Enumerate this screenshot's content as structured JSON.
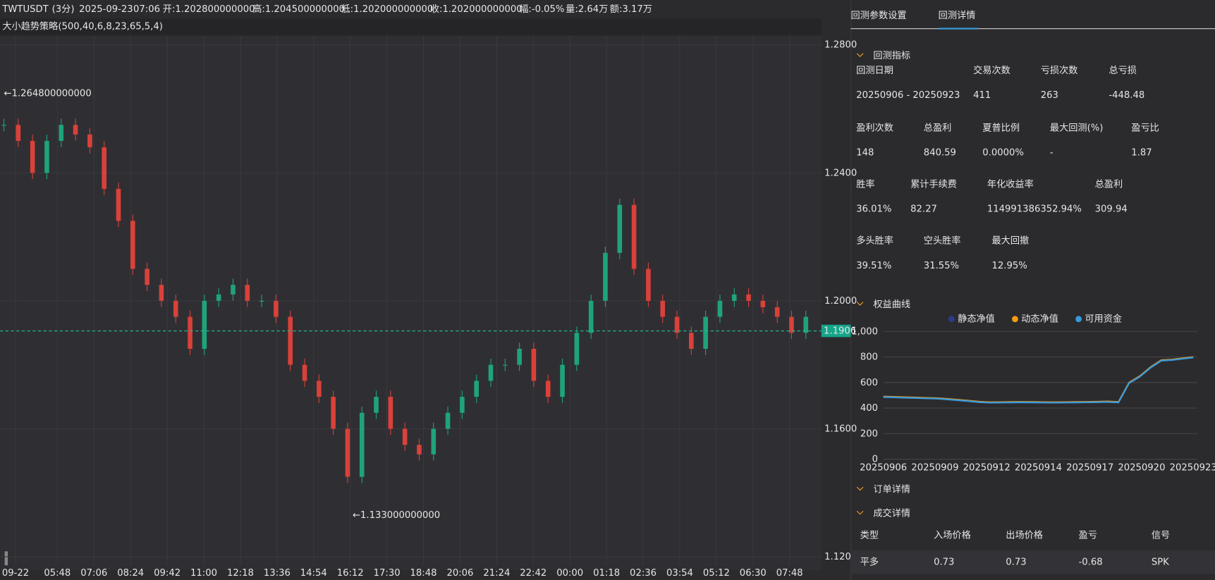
{
  "header": {
    "symbol": "TWTUSDT",
    "period": "(3分)",
    "date": "2025-09-23",
    "time": "07:06",
    "open": "开:1.202800000000",
    "high": "高:1.204500000000",
    "low": "低:1.202000000000",
    "close": "收:1.202000000000",
    "change": "幅:-0.05%",
    "volume": "量:2.64万",
    "amount": "额:3.17万"
  },
  "strategy": "大小趋势策略(500,40,6,8,23,65,5,4)",
  "chart_data": [
    {
      "type": "candlestick",
      "closes": [
        1.255,
        1.25,
        1.24,
        1.25,
        1.255,
        1.252,
        1.248,
        1.235,
        1.225,
        1.21,
        1.205,
        1.2,
        1.195,
        1.185,
        1.2,
        1.202,
        1.205,
        1.2,
        1.2,
        1.195,
        1.18,
        1.175,
        1.17,
        1.16,
        1.145,
        1.165,
        1.17,
        1.16,
        1.155,
        1.152,
        1.16,
        1.165,
        1.17,
        1.175,
        1.18,
        1.18,
        1.185,
        1.175,
        1.17,
        1.18,
        1.19,
        1.2,
        1.215,
        1.23,
        1.21,
        1.2,
        1.195,
        1.19,
        1.185,
        1.195,
        1.2,
        1.202,
        1.2,
        1.198,
        1.195,
        1.19,
        1.195
      ],
      "ylim": [
        1.12,
        1.28
      ],
      "yticks": [
        {
          "value": 1.28,
          "label": "1.2800"
        },
        {
          "value": 1.24,
          "label": "1.2400"
        },
        {
          "value": 1.2,
          "label": "1.2000"
        },
        {
          "value": 1.16,
          "label": "1.1600"
        },
        {
          "value": 1.12,
          "label": "1.1200"
        }
      ],
      "last_price": {
        "value": 1.1906,
        "label": "1.1906"
      },
      "annotations": [
        {
          "value": 1.2648,
          "label": "←1.264800000000"
        },
        {
          "value": 1.133,
          "label": "←1.133000000000"
        }
      ],
      "x_labels": [
        "09-22",
        "05:48",
        "07:06",
        "08:24",
        "09:42",
        "11:00",
        "12:18",
        "13:36",
        "14:54",
        "16:12",
        "17:30",
        "18:48",
        "20:06",
        "21:24",
        "22:42",
        "00:00",
        "01:18",
        "02:36",
        "03:54",
        "05:12",
        "06:30",
        "07:48"
      ]
    },
    {
      "type": "line",
      "title": "权益曲线",
      "x_labels": [
        "20250906",
        "20250909",
        "20250912",
        "20250914",
        "20250917",
        "20250920",
        "20250923"
      ],
      "ylim": [
        0,
        1000
      ],
      "yticks": [
        0,
        200,
        400,
        600,
        800,
        {
          "value": 1000,
          "label": "1,000"
        }
      ],
      "series": [
        {
          "name": "静态净值",
          "color": "#2d3a8c",
          "values": [
            486,
            484,
            481,
            479,
            476,
            474,
            468,
            461,
            454,
            446,
            442,
            443,
            444,
            445,
            444,
            443,
            442,
            443,
            444,
            445,
            446,
            448,
            444,
            596,
            646,
            716,
            771,
            776,
            786,
            796
          ]
        },
        {
          "name": "动态净值",
          "color": "#f39c12",
          "values": [
            490,
            488,
            485,
            483,
            480,
            478,
            472,
            465,
            458,
            450,
            446,
            447,
            448,
            449,
            448,
            447,
            446,
            447,
            448,
            449,
            450,
            452,
            448,
            600,
            650,
            720,
            775,
            780,
            790,
            800
          ]
        },
        {
          "name": "可用资金",
          "color": "#3a9ad9",
          "values": [
            486,
            484,
            481,
            479,
            476,
            474,
            468,
            461,
            454,
            446,
            442,
            443,
            444,
            445,
            444,
            443,
            442,
            443,
            444,
            445,
            446,
            448,
            444,
            596,
            646,
            716,
            771,
            776,
            786,
            796
          ]
        }
      ]
    }
  ],
  "tabs": [
    "回测参数设置",
    "回测详情"
  ],
  "sections": {
    "metrics": "回测指标",
    "orders": "订单详情",
    "trades": "成交详情"
  },
  "metrics": [
    [
      {
        "label": "回测日期",
        "value": "20250906 - 20250923"
      },
      {
        "label": "交易次数",
        "value": "411"
      },
      {
        "label": "亏损次数",
        "value": "263"
      },
      {
        "label": "总亏损",
        "value": "-448.48"
      }
    ],
    [
      {
        "label": "盈利次数",
        "value": "148"
      },
      {
        "label": "总盈利",
        "value": "840.59"
      },
      {
        "label": "夏普比例",
        "value": "0.0000%"
      },
      {
        "label": "最大回测(%)",
        "value": "-"
      },
      {
        "label": "盈亏比",
        "value": "1.87"
      }
    ],
    [
      {
        "label": "胜率",
        "value": "36.01%"
      },
      {
        "label": "累计手续费",
        "value": "82.27"
      },
      {
        "label": "年化收益率",
        "value": "114991386352.94%"
      },
      {
        "label": "总盈利",
        "value": "309.94"
      }
    ],
    [
      {
        "label": "多头胜率",
        "value": "39.51%"
      },
      {
        "label": "空头胜率",
        "value": "31.55%"
      },
      {
        "label": "最大回撤",
        "value": "12.95%"
      }
    ]
  ],
  "table": {
    "header": [
      "类型",
      "入场价格",
      "出场价格",
      "盈亏",
      "信号"
    ],
    "rows": [
      [
        "平多",
        "0.73",
        "0.73",
        "-0.68",
        "SPK"
      ]
    ]
  }
}
